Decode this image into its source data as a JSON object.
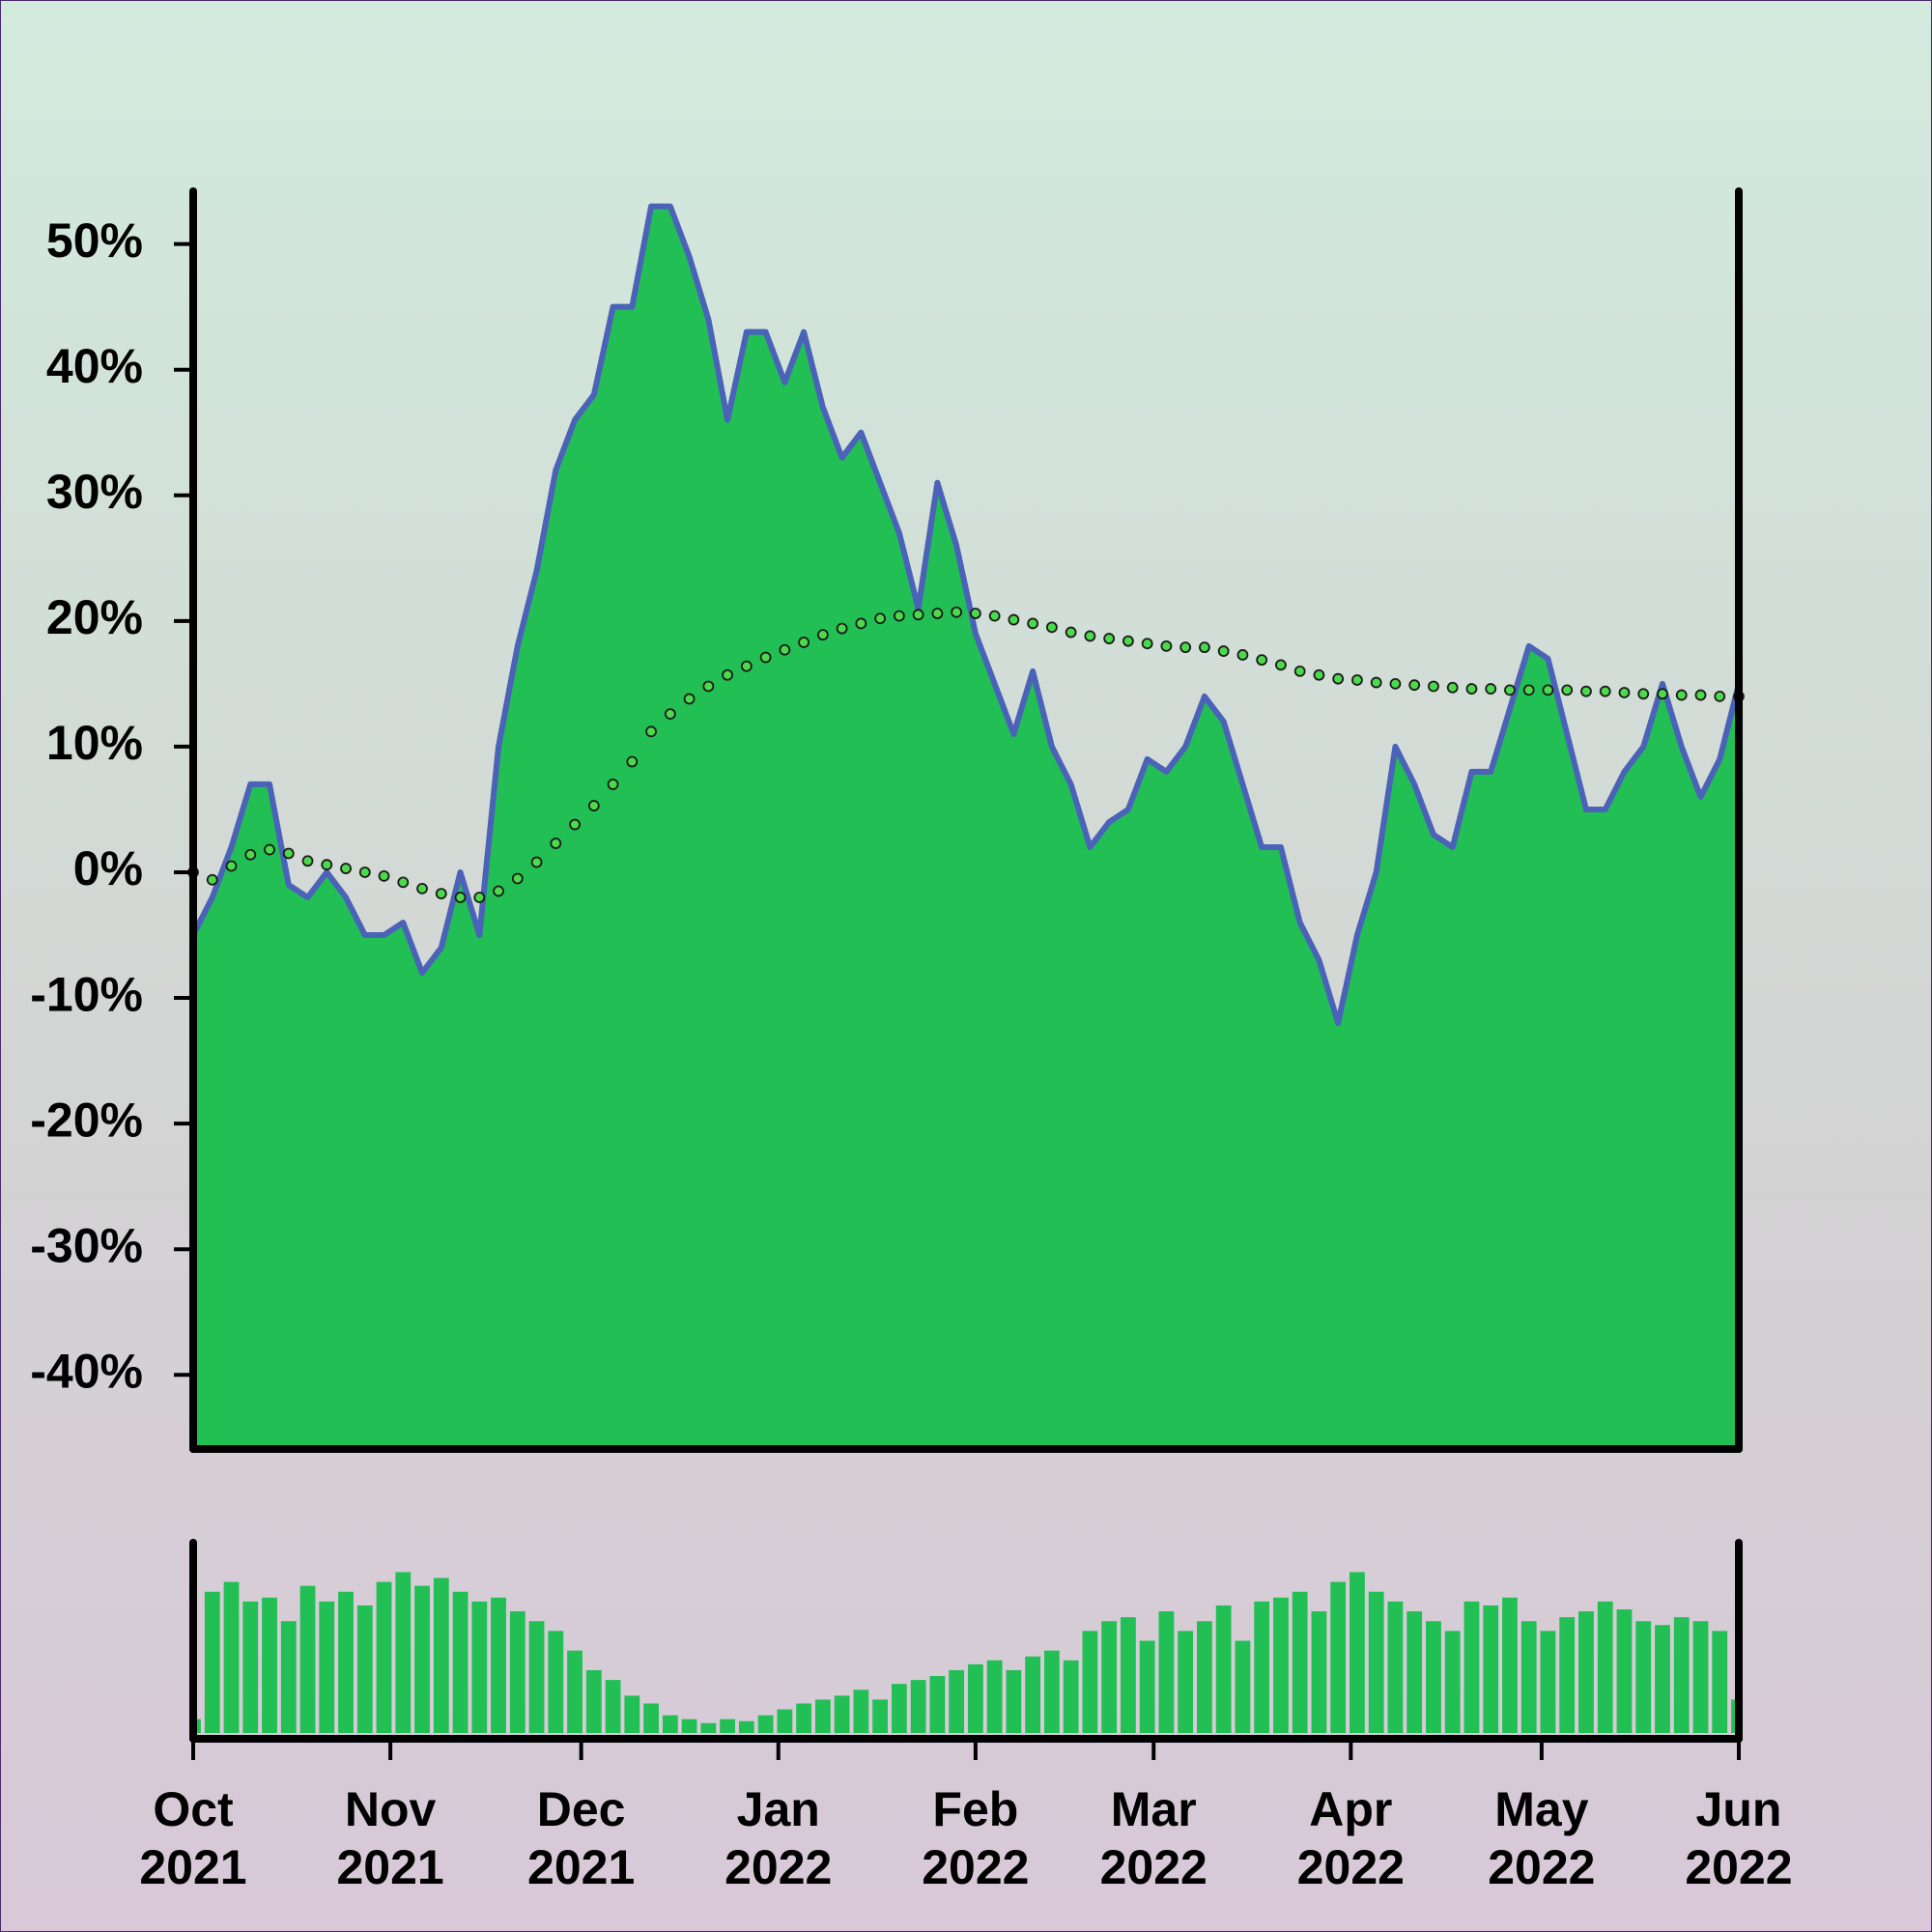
{
  "chart_data": [
    {
      "type": "area",
      "x": [
        0,
        3,
        6,
        9,
        12,
        15,
        18,
        21,
        24,
        27,
        30,
        33,
        36,
        39,
        42,
        45,
        48,
        51,
        54,
        57,
        60,
        63,
        66,
        69,
        72,
        75,
        78,
        81,
        84,
        87,
        90,
        93,
        96,
        99,
        102,
        105,
        108,
        111,
        114,
        117,
        120,
        123,
        126,
        129,
        132,
        135,
        138,
        141,
        144,
        147,
        150,
        153,
        156,
        159,
        162,
        165,
        168,
        171,
        174,
        177,
        180,
        183,
        186,
        189,
        192,
        195,
        198,
        201,
        204,
        207,
        210,
        213,
        216,
        219,
        222,
        225,
        228,
        231,
        234,
        237,
        240,
        243
      ],
      "xlim": [
        0,
        243
      ],
      "ylim": [
        -45.9,
        54.2
      ],
      "yticks": [
        {
          "value": 50,
          "label": "50%"
        },
        {
          "value": 40,
          "label": "40%"
        },
        {
          "value": 30,
          "label": "30%"
        },
        {
          "value": 20,
          "label": "20%"
        },
        {
          "value": 10,
          "label": "10%"
        },
        {
          "value": 0,
          "label": "0%"
        },
        {
          "value": -10,
          "label": "-10%"
        },
        {
          "value": -20,
          "label": "-20%"
        },
        {
          "value": -30,
          "label": "-30%"
        },
        {
          "value": -40,
          "label": "-40%"
        }
      ],
      "series": [
        {
          "color": "#22bf55",
          "line_color": "#4a62b8",
          "values": [
            -5,
            -2,
            2,
            7,
            7,
            -1,
            -2,
            0,
            -2,
            -5,
            -5,
            -4,
            -8,
            -6,
            0,
            -5,
            10,
            18,
            24,
            32,
            36,
            38,
            45,
            45,
            53,
            53,
            49,
            44,
            36,
            43,
            43,
            39,
            43,
            37,
            33,
            35,
            31,
            27,
            21,
            31,
            26,
            19,
            15,
            11,
            16,
            10,
            7,
            2,
            4,
            5,
            9,
            8,
            10,
            14,
            12,
            7,
            2,
            2,
            -4,
            -7,
            -12,
            -5,
            0,
            10,
            7,
            3,
            2,
            8,
            8,
            13,
            18,
            17,
            11,
            5,
            5,
            8,
            10,
            15,
            10,
            6,
            9,
            15
          ]
        },
        {
          "color": "#4cd94c",
          "style": "dots",
          "values": [
            0,
            -0.6,
            0.5,
            1.4,
            1.8,
            1.5,
            0.9,
            0.6,
            0.3,
            0,
            -0.3,
            -0.8,
            -1.3,
            -1.7,
            -2,
            -2,
            -1.5,
            -0.5,
            0.8,
            2.3,
            3.8,
            5.3,
            7,
            8.8,
            11.2,
            12.6,
            13.8,
            14.8,
            15.7,
            16.4,
            17.1,
            17.7,
            18.3,
            18.9,
            19.4,
            19.8,
            20.2,
            20.4,
            20.5,
            20.6,
            20.7,
            20.6,
            20.4,
            20.1,
            19.8,
            19.5,
            19.1,
            18.8,
            18.6,
            18.4,
            18.2,
            18,
            17.9,
            17.9,
            17.6,
            17.3,
            16.9,
            16.5,
            16,
            15.7,
            15.4,
            15.3,
            15.1,
            15,
            14.9,
            14.8,
            14.7,
            14.6,
            14.6,
            14.5,
            14.5,
            14.5,
            14.5,
            14.4,
            14.4,
            14.3,
            14.2,
            14.2,
            14.1,
            14.1,
            14,
            14
          ]
        }
      ]
    },
    {
      "type": "bar",
      "x": [
        0,
        3,
        6,
        9,
        12,
        15,
        18,
        21,
        24,
        27,
        30,
        33,
        36,
        39,
        42,
        45,
        48,
        51,
        54,
        57,
        60,
        63,
        66,
        69,
        72,
        75,
        78,
        81,
        84,
        87,
        90,
        93,
        96,
        99,
        102,
        105,
        108,
        111,
        114,
        117,
        120,
        123,
        126,
        129,
        132,
        135,
        138,
        141,
        144,
        147,
        150,
        153,
        156,
        159,
        162,
        165,
        168,
        171,
        174,
        177,
        180,
        183,
        186,
        189,
        192,
        195,
        198,
        201,
        204,
        207,
        210,
        213,
        216,
        219,
        222,
        225,
        228,
        231,
        234,
        237,
        240,
        243
      ],
      "xlim": [
        0,
        243
      ],
      "ylim": [
        0,
        100
      ],
      "color": "#22bf55",
      "values": [
        10,
        75,
        80,
        70,
        72,
        60,
        78,
        70,
        75,
        68,
        80,
        85,
        78,
        82,
        75,
        70,
        72,
        65,
        60,
        55,
        45,
        35,
        30,
        22,
        18,
        12,
        10,
        8,
        10,
        9,
        12,
        15,
        18,
        20,
        22,
        25,
        20,
        28,
        30,
        32,
        35,
        38,
        40,
        35,
        42,
        45,
        40,
        55,
        60,
        62,
        50,
        65,
        55,
        60,
        68,
        50,
        70,
        72,
        75,
        65,
        80,
        85,
        75,
        70,
        65,
        60,
        55,
        70,
        68,
        72,
        60,
        55,
        62,
        65,
        70,
        66,
        60,
        58,
        62,
        60,
        55,
        20
      ],
      "xticks": [
        {
          "value": 0,
          "label": "Oct 2021"
        },
        {
          "value": 31,
          "label": "Nov 2021"
        },
        {
          "value": 61,
          "label": "Dec 2021"
        },
        {
          "value": 92,
          "label": "Jan 2022"
        },
        {
          "value": 123,
          "label": "Feb 2022"
        },
        {
          "value": 151,
          "label": "Mar 2022"
        },
        {
          "value": 182,
          "label": "Apr 2022"
        },
        {
          "value": 212,
          "label": "May 2022"
        },
        {
          "value": 243,
          "label": "Jun 2022"
        }
      ]
    }
  ]
}
